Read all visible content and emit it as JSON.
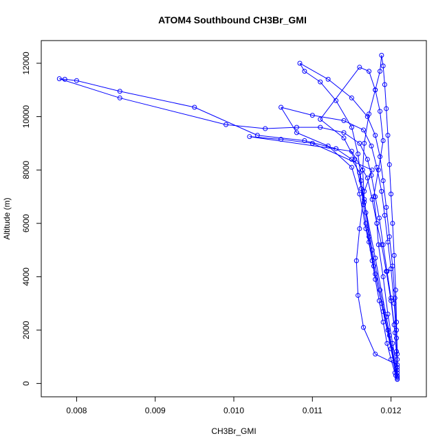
{
  "chart_data": {
    "type": "scatter",
    "title": "ATOM4 Southbound CH3Br_GMI",
    "xlabel": "CH3Br_GMI",
    "ylabel": "Altitude (m)",
    "xlim": [
      0.00755,
      0.01245
    ],
    "ylim": [
      -500,
      12850
    ],
    "xticks": [
      0.008,
      0.009,
      0.01,
      0.011,
      0.012
    ],
    "xtick_labels": [
      "0.008",
      "0.009",
      "0.010",
      "0.011",
      "0.012"
    ],
    "yticks": [
      0,
      2000,
      4000,
      6000,
      8000,
      10000,
      12000
    ],
    "ytick_labels": [
      "0",
      "2000",
      "4000",
      "6000",
      "8000",
      "10000",
      "12000"
    ],
    "grid": false,
    "marker": "open-circle",
    "connected": true,
    "series_color": "#0000ff",
    "series": [
      {
        "name": "",
        "points": [
          [
            0.01208,
            150
          ],
          [
            0.01205,
            400
          ],
          [
            0.012,
            900
          ],
          [
            0.01195,
            1500
          ],
          [
            0.0119,
            2300
          ],
          [
            0.01185,
            3100
          ],
          [
            0.0118,
            3900
          ],
          [
            0.01176,
            4600
          ],
          [
            0.01172,
            5300
          ],
          [
            0.01168,
            6000
          ],
          [
            0.01165,
            6700
          ],
          [
            0.01162,
            7300
          ],
          [
            0.0116,
            7900
          ],
          [
            0.0115,
            8400
          ],
          [
            0.0113,
            8800
          ],
          [
            0.0109,
            9100
          ],
          [
            0.0103,
            9300
          ],
          [
            0.0095,
            10350
          ],
          [
            0.00855,
            10950
          ],
          [
            0.008,
            11350
          ],
          [
            0.00785,
            11400
          ],
          [
            0.00778,
            11420
          ],
          [
            0.00855,
            10700
          ],
          [
            0.0099,
            9700
          ],
          [
            0.0104,
            9550
          ],
          [
            0.0108,
            9600
          ],
          [
            0.0111,
            9600
          ],
          [
            0.0114,
            9400
          ],
          [
            0.0116,
            9000
          ],
          [
            0.0117,
            8400
          ],
          [
            0.01175,
            7800
          ],
          [
            0.0118,
            7000
          ],
          [
            0.01185,
            6200
          ],
          [
            0.0119,
            5200
          ],
          [
            0.01195,
            4200
          ],
          [
            0.012,
            3200
          ],
          [
            0.01204,
            2200
          ],
          [
            0.01207,
            1200
          ],
          [
            0.01208,
            400
          ],
          [
            0.01208,
            200
          ],
          [
            0.01198,
            1800
          ],
          [
            0.01188,
            3000
          ],
          [
            0.01178,
            4400
          ],
          [
            0.01168,
            5800
          ],
          [
            0.0116,
            7100
          ],
          [
            0.0115,
            8100
          ],
          [
            0.0112,
            8900
          ],
          [
            0.0108,
            9400
          ],
          [
            0.0106,
            10350
          ],
          [
            0.011,
            10050
          ],
          [
            0.0114,
            9850
          ],
          [
            0.01165,
            9500
          ],
          [
            0.01175,
            8900
          ],
          [
            0.01182,
            8100
          ],
          [
            0.01188,
            7200
          ],
          [
            0.01192,
            6300
          ],
          [
            0.01196,
            5300
          ],
          [
            0.012,
            4300
          ],
          [
            0.01204,
            3000
          ],
          [
            0.01207,
            1700
          ],
          [
            0.01208,
            600
          ],
          [
            0.01206,
            300
          ],
          [
            0.01196,
            2000
          ],
          [
            0.01186,
            3500
          ],
          [
            0.01176,
            5000
          ],
          [
            0.01168,
            6400
          ],
          [
            0.01162,
            7600
          ],
          [
            0.01158,
            8600
          ],
          [
            0.0115,
            9600
          ],
          [
            0.0113,
            10600
          ],
          [
            0.0111,
            11300
          ],
          [
            0.0109,
            11700
          ],
          [
            0.01084,
            12000
          ],
          [
            0.0112,
            11400
          ],
          [
            0.0115,
            10700
          ],
          [
            0.0117,
            10000
          ],
          [
            0.0118,
            9300
          ],
          [
            0.01186,
            8500
          ],
          [
            0.0119,
            7600
          ],
          [
            0.01194,
            6600
          ],
          [
            0.01198,
            5500
          ],
          [
            0.01202,
            4400
          ],
          [
            0.01205,
            3200
          ],
          [
            0.01207,
            2000
          ],
          [
            0.01208,
            900
          ],
          [
            0.01208,
            250
          ],
          [
            0.012,
            1300
          ],
          [
            0.0119,
            2700
          ],
          [
            0.0118,
            4100
          ],
          [
            0.01172,
            5500
          ],
          [
            0.01166,
            6900
          ],
          [
            0.01164,
            8000
          ],
          [
            0.01166,
            9000
          ],
          [
            0.01172,
            10100
          ],
          [
            0.0118,
            11000
          ],
          [
            0.01186,
            11700
          ],
          [
            0.01188,
            12300
          ],
          [
            0.0119,
            11900
          ],
          [
            0.01192,
            11200
          ],
          [
            0.01194,
            10300
          ],
          [
            0.01196,
            9300
          ],
          [
            0.01198,
            8200
          ],
          [
            0.012,
            7100
          ],
          [
            0.01202,
            6000
          ],
          [
            0.01204,
            4800
          ],
          [
            0.01206,
            3500
          ],
          [
            0.01207,
            2300
          ],
          [
            0.01208,
            1100
          ],
          [
            0.01208,
            300
          ],
          [
            0.01194,
            2500
          ],
          [
            0.0118,
            4700
          ],
          [
            0.01166,
            6800
          ],
          [
            0.01154,
            8400
          ],
          [
            0.0114,
            9200
          ],
          [
            0.0111,
            9900
          ],
          [
            0.0116,
            11850
          ],
          [
            0.01172,
            11700
          ],
          [
            0.0118,
            11000
          ],
          [
            0.01186,
            10200
          ],
          [
            0.0119,
            9100
          ],
          [
            0.01184,
            8000
          ],
          [
            0.01178,
            7000
          ],
          [
            0.01182,
            6000
          ],
          [
            0.01188,
            5200
          ],
          [
            0.01194,
            4200
          ],
          [
            0.012,
            3100
          ],
          [
            0.01205,
            1900
          ],
          [
            0.01208,
            700
          ],
          [
            0.0118,
            1100
          ],
          [
            0.01165,
            2100
          ],
          [
            0.01158,
            3300
          ],
          [
            0.01156,
            4600
          ],
          [
            0.0116,
            5800
          ],
          [
            0.01166,
            7200
          ],
          [
            0.01176,
            8000
          ],
          [
            0.011,
            9000
          ],
          [
            0.0106,
            9150
          ],
          [
            0.0102,
            9250
          ],
          [
            0.0115,
            8700
          ],
          [
            0.0117,
            7700
          ],
          [
            0.01176,
            6900
          ],
          [
            0.01182,
            6000
          ],
          [
            0.01184,
            5200
          ],
          [
            0.0119,
            4000
          ],
          [
            0.01196,
            2600
          ],
          [
            0.01202,
            1500
          ],
          [
            0.01208,
            500
          ]
        ]
      }
    ]
  }
}
